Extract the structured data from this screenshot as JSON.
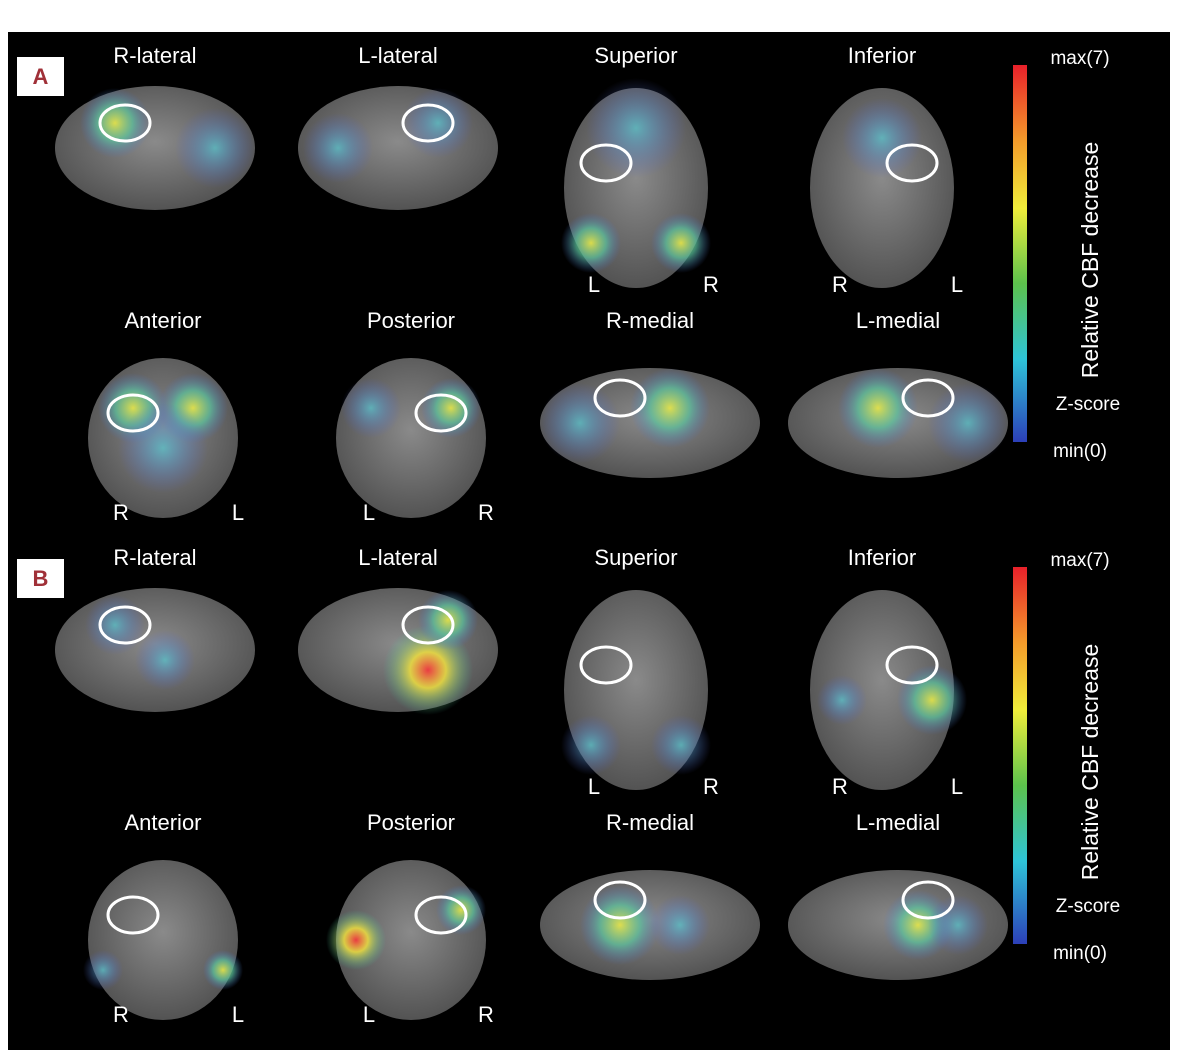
{
  "panels": [
    {
      "label": "A",
      "views": [
        {
          "title": "R-lateral"
        },
        {
          "title": "L-lateral"
        },
        {
          "title": "Superior",
          "left": "L",
          "right": "R"
        },
        {
          "title": "Inferior",
          "left": "R",
          "right": "L"
        },
        {
          "title": "Anterior",
          "left": "R",
          "right": "L"
        },
        {
          "title": "Posterior",
          "left": "L",
          "right": "R"
        },
        {
          "title": "R-medial"
        },
        {
          "title": "L-medial"
        }
      ],
      "colorbar": {
        "max": "max(7)",
        "title": "Relative CBF decrease",
        "zlabel": "Z-score",
        "min": "min(0)"
      }
    },
    {
      "label": "B",
      "views": [
        {
          "title": "R-lateral"
        },
        {
          "title": "L-lateral"
        },
        {
          "title": "Superior",
          "left": "L",
          "right": "R"
        },
        {
          "title": "Inferior",
          "left": "R",
          "right": "L"
        },
        {
          "title": "Anterior",
          "left": "R",
          "right": "L"
        },
        {
          "title": "Posterior",
          "left": "L",
          "right": "R"
        },
        {
          "title": "R-medial"
        },
        {
          "title": "L-medial"
        }
      ],
      "colorbar": {
        "max": "max(7)",
        "title": "Relative CBF decrease",
        "zlabel": "Z-score",
        "min": "min(0)"
      }
    }
  ]
}
